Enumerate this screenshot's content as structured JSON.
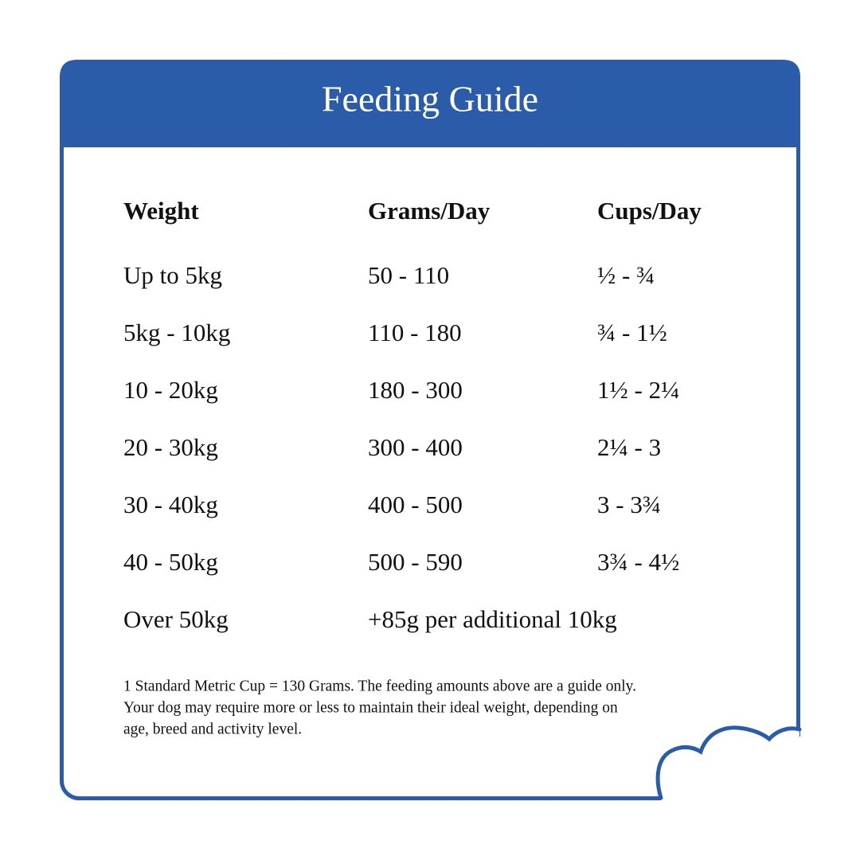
{
  "header": {
    "title": "Feeding Guide"
  },
  "table": {
    "columns": [
      "Weight",
      "Grams/Day",
      "Cups/Day"
    ],
    "rows": [
      [
        "Up to 5kg",
        "50 - 110",
        "½ - ¾"
      ],
      [
        "5kg - 10kg",
        "110 - 180",
        "¾ - 1½"
      ],
      [
        "10 - 20kg",
        "180 - 300",
        "1½ - 2¼"
      ],
      [
        "20 - 30kg",
        "300 - 400",
        "2¼ - 3"
      ],
      [
        "30 - 40kg",
        "400 - 500",
        "3 - 3¾"
      ],
      [
        "40 - 50kg",
        "500 - 590",
        "3¾ - 4½"
      ],
      [
        "Over 50kg",
        "+85g per additional 10kg"
      ]
    ]
  },
  "footnote": [
    "1 Standard Metric Cup = 130 Grams. The feeding amounts above are a guide only.",
    "Your dog may require more or less to maintain their ideal weight, depending on",
    "age, breed and activity level."
  ]
}
